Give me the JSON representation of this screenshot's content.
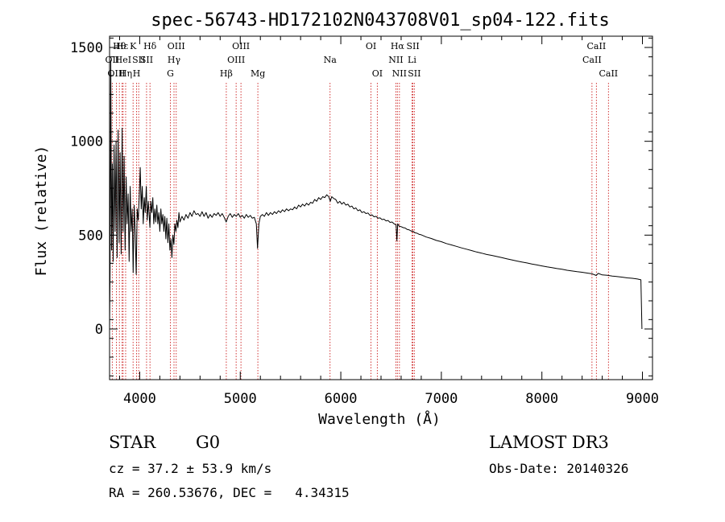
{
  "chart_data": {
    "type": "line",
    "title": "spec-56743-HD172102N043708V01_sp04-122.fits",
    "xlabel": "Wavelength (Å)",
    "ylabel": "Flux (relative)",
    "xlim": [
      3700,
      9100
    ],
    "ylim": [
      -270,
      1560
    ],
    "xticks": [
      4000,
      5000,
      6000,
      7000,
      8000,
      9000
    ],
    "xtick_labels": [
      "4000",
      "5000",
      "6000",
      "7000",
      "8000",
      "9000"
    ],
    "yticks": [
      0,
      500,
      1000,
      1500
    ],
    "ytick_labels": [
      "0",
      "500",
      "1000",
      "1500"
    ],
    "series": [
      {
        "name": "spectrum",
        "points": [
          [
            3700,
            0
          ],
          [
            3705,
            300
          ],
          [
            3712,
            1430
          ],
          [
            3720,
            420
          ],
          [
            3728,
            880
          ],
          [
            3736,
            360
          ],
          [
            3745,
            980
          ],
          [
            3755,
            520
          ],
          [
            3765,
            1000
          ],
          [
            3775,
            380
          ],
          [
            3785,
            1060
          ],
          [
            3795,
            460
          ],
          [
            3805,
            940
          ],
          [
            3815,
            400
          ],
          [
            3825,
            1070
          ],
          [
            3835,
            520
          ],
          [
            3845,
            920
          ],
          [
            3855,
            420
          ],
          [
            3865,
            810
          ],
          [
            3875,
            560
          ],
          [
            3885,
            720
          ],
          [
            3895,
            360
          ],
          [
            3905,
            760
          ],
          [
            3915,
            520
          ],
          [
            3925,
            640
          ],
          [
            3935,
            300
          ],
          [
            3945,
            660
          ],
          [
            3955,
            520
          ],
          [
            3965,
            290
          ],
          [
            3975,
            640
          ],
          [
            3985,
            580
          ],
          [
            3995,
            700
          ],
          [
            4005,
            860
          ],
          [
            4015,
            640
          ],
          [
            4025,
            760
          ],
          [
            4035,
            560
          ],
          [
            4045,
            700
          ],
          [
            4055,
            620
          ],
          [
            4065,
            760
          ],
          [
            4075,
            580
          ],
          [
            4085,
            680
          ],
          [
            4095,
            600
          ],
          [
            4101,
            540
          ],
          [
            4110,
            680
          ],
          [
            4120,
            620
          ],
          [
            4130,
            700
          ],
          [
            4140,
            560
          ],
          [
            4150,
            640
          ],
          [
            4160,
            570
          ],
          [
            4170,
            660
          ],
          [
            4180,
            560
          ],
          [
            4190,
            620
          ],
          [
            4200,
            520
          ],
          [
            4210,
            640
          ],
          [
            4220,
            560
          ],
          [
            4230,
            610
          ],
          [
            4240,
            520
          ],
          [
            4250,
            600
          ],
          [
            4260,
            480
          ],
          [
            4270,
            590
          ],
          [
            4280,
            460
          ],
          [
            4290,
            560
          ],
          [
            4300,
            420
          ],
          [
            4310,
            480
          ],
          [
            4320,
            380
          ],
          [
            4330,
            500
          ],
          [
            4340,
            450
          ],
          [
            4350,
            560
          ],
          [
            4360,
            520
          ],
          [
            4370,
            580
          ],
          [
            4380,
            540
          ],
          [
            4390,
            620
          ],
          [
            4400,
            570
          ],
          [
            4420,
            600
          ],
          [
            4440,
            580
          ],
          [
            4460,
            610
          ],
          [
            4480,
            590
          ],
          [
            4500,
            620
          ],
          [
            4520,
            600
          ],
          [
            4540,
            630
          ],
          [
            4560,
            610
          ],
          [
            4580,
            615
          ],
          [
            4600,
            600
          ],
          [
            4620,
            625
          ],
          [
            4640,
            600
          ],
          [
            4660,
            620
          ],
          [
            4680,
            590
          ],
          [
            4700,
            610
          ],
          [
            4720,
            595
          ],
          [
            4740,
            615
          ],
          [
            4760,
            605
          ],
          [
            4780,
            620
          ],
          [
            4800,
            600
          ],
          [
            4820,
            615
          ],
          [
            4840,
            595
          ],
          [
            4860,
            570
          ],
          [
            4880,
            600
          ],
          [
            4900,
            615
          ],
          [
            4920,
            595
          ],
          [
            4940,
            610
          ],
          [
            4960,
            600
          ],
          [
            4980,
            615
          ],
          [
            5000,
            595
          ],
          [
            5020,
            605
          ],
          [
            5040,
            590
          ],
          [
            5060,
            610
          ],
          [
            5080,
            595
          ],
          [
            5100,
            605
          ],
          [
            5120,
            590
          ],
          [
            5140,
            595
          ],
          [
            5160,
            560
          ],
          [
            5172,
            430
          ],
          [
            5185,
            560
          ],
          [
            5200,
            600
          ],
          [
            5220,
            610
          ],
          [
            5240,
            600
          ],
          [
            5260,
            620
          ],
          [
            5280,
            605
          ],
          [
            5300,
            620
          ],
          [
            5320,
            610
          ],
          [
            5340,
            625
          ],
          [
            5360,
            615
          ],
          [
            5380,
            630
          ],
          [
            5400,
            620
          ],
          [
            5420,
            635
          ],
          [
            5440,
            625
          ],
          [
            5460,
            640
          ],
          [
            5480,
            630
          ],
          [
            5500,
            640
          ],
          [
            5520,
            635
          ],
          [
            5540,
            650
          ],
          [
            5560,
            640
          ],
          [
            5580,
            660
          ],
          [
            5600,
            650
          ],
          [
            5620,
            665
          ],
          [
            5640,
            655
          ],
          [
            5660,
            670
          ],
          [
            5680,
            660
          ],
          [
            5700,
            675
          ],
          [
            5720,
            670
          ],
          [
            5740,
            690
          ],
          [
            5760,
            680
          ],
          [
            5780,
            700
          ],
          [
            5800,
            690
          ],
          [
            5820,
            705
          ],
          [
            5840,
            700
          ],
          [
            5860,
            715
          ],
          [
            5880,
            705
          ],
          [
            5895,
            680
          ],
          [
            5910,
            705
          ],
          [
            5930,
            695
          ],
          [
            5950,
            690
          ],
          [
            5970,
            670
          ],
          [
            5990,
            680
          ],
          [
            6010,
            665
          ],
          [
            6030,
            675
          ],
          [
            6050,
            660
          ],
          [
            6070,
            665
          ],
          [
            6090,
            650
          ],
          [
            6110,
            655
          ],
          [
            6130,
            640
          ],
          [
            6150,
            645
          ],
          [
            6170,
            630
          ],
          [
            6190,
            635
          ],
          [
            6210,
            620
          ],
          [
            6230,
            625
          ],
          [
            6250,
            615
          ],
          [
            6270,
            618
          ],
          [
            6290,
            605
          ],
          [
            6310,
            608
          ],
          [
            6330,
            598
          ],
          [
            6350,
            600
          ],
          [
            6370,
            590
          ],
          [
            6390,
            592
          ],
          [
            6410,
            583
          ],
          [
            6430,
            585
          ],
          [
            6450,
            576
          ],
          [
            6470,
            578
          ],
          [
            6490,
            568
          ],
          [
            6510,
            570
          ],
          [
            6530,
            560
          ],
          [
            6550,
            555
          ],
          [
            6558,
            470
          ],
          [
            6566,
            560
          ],
          [
            6580,
            548
          ],
          [
            6600,
            545
          ],
          [
            6620,
            540
          ],
          [
            6640,
            538
          ],
          [
            6660,
            530
          ],
          [
            6680,
            528
          ],
          [
            6700,
            522
          ],
          [
            6720,
            520
          ],
          [
            6740,
            512
          ],
          [
            6760,
            510
          ],
          [
            6780,
            504
          ],
          [
            6800,
            502
          ],
          [
            6850,
            490
          ],
          [
            6900,
            482
          ],
          [
            6950,
            472
          ],
          [
            7000,
            465
          ],
          [
            7050,
            455
          ],
          [
            7100,
            448
          ],
          [
            7150,
            440
          ],
          [
            7200,
            432
          ],
          [
            7250,
            425
          ],
          [
            7300,
            418
          ],
          [
            7350,
            410
          ],
          [
            7400,
            404
          ],
          [
            7450,
            397
          ],
          [
            7500,
            392
          ],
          [
            7550,
            386
          ],
          [
            7600,
            380
          ],
          [
            7650,
            374
          ],
          [
            7700,
            368
          ],
          [
            7750,
            362
          ],
          [
            7800,
            357
          ],
          [
            7850,
            352
          ],
          [
            7900,
            346
          ],
          [
            7950,
            341
          ],
          [
            8000,
            336
          ],
          [
            8050,
            331
          ],
          [
            8100,
            327
          ],
          [
            8150,
            322
          ],
          [
            8200,
            318
          ],
          [
            8250,
            313
          ],
          [
            8300,
            309
          ],
          [
            8350,
            305
          ],
          [
            8400,
            302
          ],
          [
            8450,
            298
          ],
          [
            8500,
            294
          ],
          [
            8540,
            285
          ],
          [
            8560,
            296
          ],
          [
            8600,
            288
          ],
          [
            8650,
            286
          ],
          [
            8700,
            282
          ],
          [
            8750,
            279
          ],
          [
            8800,
            276
          ],
          [
            8850,
            272
          ],
          [
            8900,
            270
          ],
          [
            8950,
            266
          ],
          [
            8985,
            262
          ],
          [
            8995,
            0
          ]
        ]
      }
    ],
    "spectral_lines": [
      {
        "label": "OII",
        "x": 3727,
        "row": 1
      },
      {
        "label": "Hθ",
        "x": 3798,
        "row": 0
      },
      {
        "label": "OIII",
        "x": 3768,
        "row": 2
      },
      {
        "label": "Hε",
        "x": 3825,
        "row": 0
      },
      {
        "label": "HeI",
        "x": 3835,
        "row": 1
      },
      {
        "label": "Hη",
        "x": 3860,
        "row": 2
      },
      {
        "label": "K",
        "x": 3934,
        "row": 0
      },
      {
        "label": "SII",
        "x": 3990,
        "row": 1
      },
      {
        "label": "H",
        "x": 3969,
        "row": 2
      },
      {
        "label": "Hδ",
        "x": 4102,
        "row": 0
      },
      {
        "label": "SII",
        "x": 4068,
        "row": 1
      },
      {
        "label": "OIII",
        "x": 4363,
        "row": 0
      },
      {
        "label": "Hγ",
        "x": 4341,
        "row": 1
      },
      {
        "label": "G",
        "x": 4305,
        "row": 2
      },
      {
        "label": "Hβ",
        "x": 4861,
        "row": 2
      },
      {
        "label": "OIII",
        "x": 5007,
        "row": 0
      },
      {
        "label": "OIII",
        "x": 4959,
        "row": 1
      },
      {
        "label": "Mg",
        "x": 5175,
        "row": 2
      },
      {
        "label": "Na",
        "x": 5893,
        "row": 1
      },
      {
        "label": "OI",
        "x": 6300,
        "row": 0
      },
      {
        "label": "OI",
        "x": 6363,
        "row": 2
      },
      {
        "label": "Hα",
        "x": 6563,
        "row": 0
      },
      {
        "label": "NII",
        "x": 6548,
        "row": 1
      },
      {
        "label": "NII",
        "x": 6583,
        "row": 2
      },
      {
        "label": "SII",
        "x": 6717,
        "row": 0
      },
      {
        "label": "Li",
        "x": 6708,
        "row": 1
      },
      {
        "label": "SII",
        "x": 6731,
        "row": 2
      },
      {
        "label": "CaII",
        "x": 8542,
        "row": 0
      },
      {
        "label": "CaII",
        "x": 8498,
        "row": 1
      },
      {
        "label": "CaII",
        "x": 8662,
        "row": 2
      }
    ]
  },
  "info": {
    "class": "STAR",
    "subclass": "G0",
    "survey": "LAMOST DR3",
    "cz": "cz = 37.2 ± 53.9 km/s",
    "obs_date": "Obs-Date: 20140326",
    "coords": "RA = 260.53676, DEC =   4.34315"
  }
}
